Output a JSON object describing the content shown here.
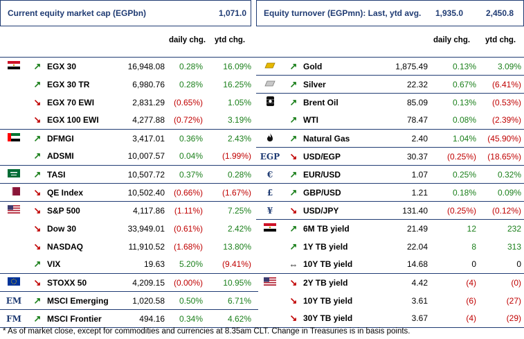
{
  "left": {
    "header_title": "Current equity market cap (EGPbn)",
    "header_value": "1,071.0",
    "col_daily": "daily chg.",
    "col_ytd": "ytd chg.",
    "rows": [
      {
        "flag": "egypt-flag-icon",
        "arrow": "up",
        "name": "EGX 30",
        "value": "16,948.08",
        "daily": "0.28%",
        "ytd": "16.09%",
        "dpos": true,
        "ypos": true
      },
      {
        "flag": "",
        "arrow": "up",
        "name": "EGX 30 TR",
        "value": "6,980.76",
        "daily": "0.28%",
        "ytd": "16.25%",
        "dpos": true,
        "ypos": true
      },
      {
        "flag": "",
        "arrow": "down",
        "name": "EGX 70 EWI",
        "value": "2,831.29",
        "daily": "(0.65%)",
        "ytd": "1.05%",
        "dpos": false,
        "ypos": true
      },
      {
        "flag": "",
        "arrow": "down",
        "name": "EGX 100 EWI",
        "value": "4,277.88",
        "daily": "(0.72%)",
        "ytd": "3.19%",
        "dpos": false,
        "ypos": true
      },
      {
        "flag": "uae-flag-icon",
        "arrow": "up",
        "name": "DFMGI",
        "value": "3,417.01",
        "daily": "0.36%",
        "ytd": "2.43%",
        "dpos": true,
        "ypos": true
      },
      {
        "flag": "",
        "arrow": "up",
        "name": "ADSMI",
        "value": "10,007.57",
        "daily": "0.04%",
        "ytd": "(1.99%)",
        "dpos": true,
        "ypos": false
      },
      {
        "flag": "saudi-flag-icon",
        "arrow": "up",
        "name": "TASI",
        "value": "10,507.72",
        "daily": "0.37%",
        "ytd": "0.28%",
        "dpos": true,
        "ypos": true
      },
      {
        "flag": "qatar-flag-icon",
        "arrow": "down",
        "name": "QE Index",
        "value": "10,502.40",
        "daily": "(0.66%)",
        "ytd": "(1.67%)",
        "dpos": false,
        "ypos": false
      },
      {
        "flag": "us-flag-icon",
        "arrow": "down",
        "name": "S&P 500",
        "value": "4,117.86",
        "daily": "(1.11%)",
        "ytd": "7.25%",
        "dpos": false,
        "ypos": true
      },
      {
        "flag": "",
        "arrow": "down",
        "name": "Dow 30",
        "value": "33,949.01",
        "daily": "(0.61%)",
        "ytd": "2.42%",
        "dpos": false,
        "ypos": true
      },
      {
        "flag": "",
        "arrow": "down",
        "name": "NASDAQ",
        "value": "11,910.52",
        "daily": "(1.68%)",
        "ytd": "13.80%",
        "dpos": false,
        "ypos": true
      },
      {
        "flag": "",
        "arrow": "up",
        "name": "VIX",
        "value": "19.63",
        "daily": "5.20%",
        "ytd": "(9.41%)",
        "dpos": true,
        "ypos": false
      },
      {
        "flag": "eu-flag-icon",
        "arrow": "down",
        "name": "STOXX 50",
        "value": "4,209.15",
        "daily": "(0.00%)",
        "ytd": "10.95%",
        "dpos": false,
        "ypos": true
      },
      {
        "flag": "EM",
        "arrow": "up",
        "name": "MSCI Emerging",
        "value": "1,020.58",
        "daily": "0.50%",
        "ytd": "6.71%",
        "dpos": true,
        "ypos": true
      },
      {
        "flag": "FM",
        "arrow": "up",
        "name": "MSCI Frontier",
        "value": "494.16",
        "daily": "0.34%",
        "ytd": "4.62%",
        "dpos": true,
        "ypos": true
      }
    ]
  },
  "right": {
    "header_title": "Equity turnover (EGPmn): Last, ytd avg.",
    "header_value1": "1,935.0",
    "header_value2": "2,450.8",
    "col_daily": "daily chg.",
    "col_ytd": "ytd chg.",
    "rows": [
      {
        "flag": "gold-bar-icon",
        "arrow": "up",
        "name": "Gold",
        "value": "1,875.49",
        "daily": "0.13%",
        "ytd": "3.09%",
        "dpos": true,
        "ypos": true
      },
      {
        "flag": "silver-bar-icon",
        "arrow": "up",
        "name": "Silver",
        "value": "22.32",
        "daily": "0.67%",
        "ytd": "(6.41%)",
        "dpos": true,
        "ypos": false
      },
      {
        "flag": "oil-barrel-icon",
        "arrow": "up",
        "name": "Brent Oil",
        "value": "85.09",
        "daily": "0.13%",
        "ytd": "(0.53%)",
        "dpos": true,
        "ypos": false
      },
      {
        "flag": "",
        "arrow": "up",
        "name": "WTI",
        "value": "78.47",
        "daily": "0.08%",
        "ytd": "(2.39%)",
        "dpos": true,
        "ypos": false
      },
      {
        "flag": "flame-icon",
        "arrow": "up",
        "name": "Natural Gas",
        "value": "2.40",
        "daily": "1.04%",
        "ytd": "(45.90%)",
        "dpos": true,
        "ypos": false
      },
      {
        "flag": "EGP",
        "arrow": "down",
        "name": "USD/EGP",
        "value": "30.37",
        "daily": "(0.25%)",
        "ytd": "(18.65%)",
        "dpos": false,
        "ypos": false
      },
      {
        "flag": "€",
        "arrow": "up",
        "name": "EUR/USD",
        "value": "1.07",
        "daily": "0.25%",
        "ytd": "0.32%",
        "dpos": true,
        "ypos": true
      },
      {
        "flag": "£",
        "arrow": "up",
        "name": "GBP/USD",
        "value": "1.21",
        "daily": "0.18%",
        "ytd": "0.09%",
        "dpos": true,
        "ypos": true
      },
      {
        "flag": "¥",
        "arrow": "down",
        "name": "USD/JPY",
        "value": "131.40",
        "daily": "(0.25%)",
        "ytd": "(0.12%)",
        "dpos": false,
        "ypos": false
      },
      {
        "flag": "egypt-flag-icon",
        "arrow": "up",
        "name": "6M TB yield",
        "value": "21.49",
        "daily": "12",
        "ytd": "232",
        "dpos": true,
        "ypos": true
      },
      {
        "flag": "",
        "arrow": "up",
        "name": "1Y TB yield",
        "value": "22.04",
        "daily": "8",
        "ytd": "313",
        "dpos": true,
        "ypos": true
      },
      {
        "flag": "",
        "arrow": "flat",
        "name": "10Y TB yield",
        "value": "14.68",
        "daily": "0",
        "ytd": "0",
        "dflat": true,
        "yflat": true
      },
      {
        "flag": "us-flag-icon",
        "arrow": "down",
        "name": "2Y TB yield",
        "value": "4.42",
        "daily": "(4)",
        "ytd": "(0)",
        "dpos": false,
        "ypos": false
      },
      {
        "flag": "",
        "arrow": "down",
        "name": "10Y TB yield",
        "value": "3.61",
        "daily": "(6)",
        "ytd": "(27)",
        "dpos": false,
        "ypos": false
      },
      {
        "flag": "",
        "arrow": "down",
        "name": "30Y TB yield",
        "value": "3.67",
        "daily": "(4)",
        "ytd": "(29)",
        "dpos": false,
        "ypos": false
      }
    ]
  },
  "footnote": "* As of market close, except for commodities and currencies at 8.35am CLT. Change in Treasuries is in basis points.",
  "colors": {
    "positive": "#1a7f1a",
    "negative": "#c00000",
    "accent": "#1f3b73"
  }
}
